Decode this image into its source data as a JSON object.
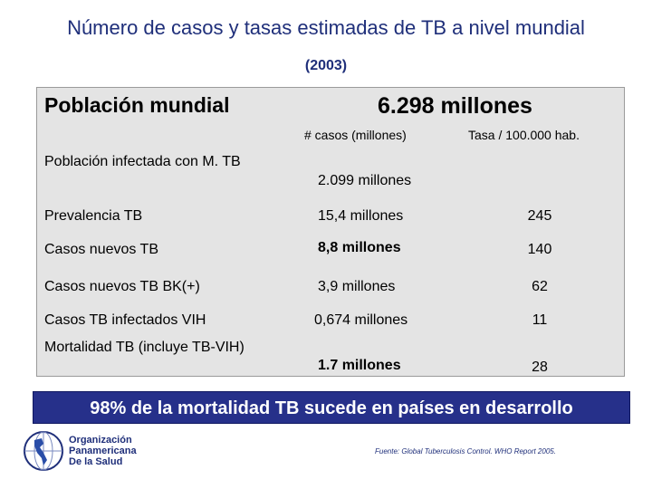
{
  "title": "Número de casos y tasas estimadas de TB a nivel mundial",
  "subtitle": "(2003)",
  "table": {
    "header_left": "Población mundial",
    "header_right": "6.298 millones",
    "col_header_1": "# casos (millones)",
    "col_header_2": "Tasa  / 100.000 hab.",
    "rows": [
      {
        "label": "Población infectada con M. TB",
        "cases": "2.099 millones",
        "rate": ""
      },
      {
        "label": "Prevalencia  TB",
        "cases": "15,4 millones",
        "rate": "245"
      },
      {
        "label": "Casos nuevos TB",
        "cases": "8,8 millones",
        "rate": "140"
      },
      {
        "label": "Casos nuevos TB BK(+)",
        "cases": "3,9 millones",
        "rate": "62"
      },
      {
        "label": "Casos TB infectados VIH",
        "cases": "0,674 millones",
        "rate": "11"
      },
      {
        "label": "Mortalidad TB (incluye TB-VIH)",
        "cases": "1.7 millones",
        "rate": "28"
      }
    ]
  },
  "banner": "98% de la mortalidad TB sucede en países en desarrollo",
  "organization": {
    "line1": "Organización",
    "line2": "Panamericana",
    "line3": "De la Salud"
  },
  "source": "Fuente: Global Tuberculosis Control. WHO Report 2005."
}
